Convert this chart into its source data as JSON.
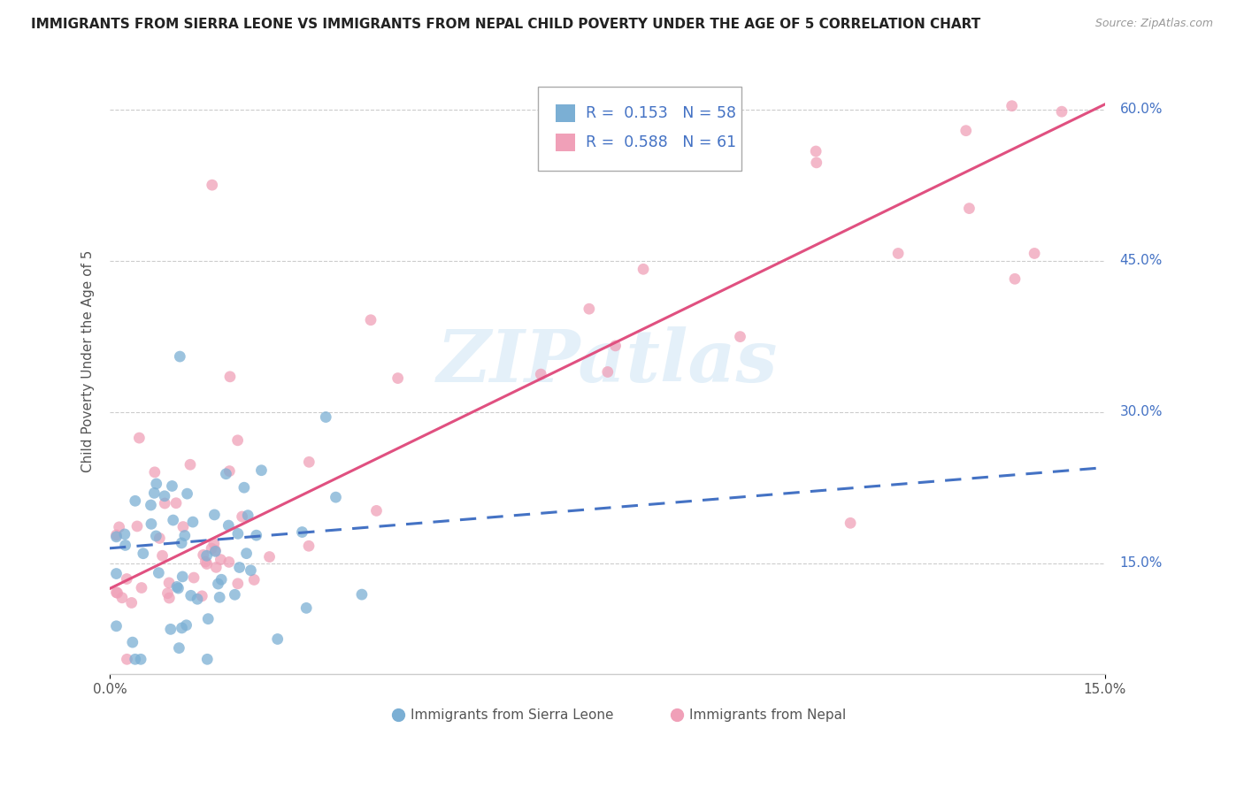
{
  "title": "IMMIGRANTS FROM SIERRA LEONE VS IMMIGRANTS FROM NEPAL CHILD POVERTY UNDER THE AGE OF 5 CORRELATION CHART",
  "source": "Source: ZipAtlas.com",
  "ylabel": "Child Poverty Under the Age of 5",
  "ytick_vals": [
    0.15,
    0.3,
    0.45,
    0.6
  ],
  "ytick_labels": [
    "15.0%",
    "30.0%",
    "45.0%",
    "60.0%"
  ],
  "xlim": [
    0.0,
    0.15
  ],
  "ylim": [
    0.04,
    0.66
  ],
  "xtick_labels": [
    "0.0%",
    "15.0%"
  ],
  "watermark": "ZIPatlas",
  "legend_label1": "Immigrants from Sierra Leone",
  "legend_label2": "Immigrants from Nepal",
  "color_blue": "#7bafd4",
  "color_pink": "#f0a0b8",
  "color_blue_dark": "#4472c4",
  "color_pink_dark": "#e05080",
  "color_text": "#555555",
  "color_grid": "#cccccc",
  "title_fontsize": 11,
  "axis_fontsize": 11,
  "tick_fontsize": 11,
  "R1": 0.153,
  "N1": 58,
  "R2": 0.588,
  "N2": 61,
  "sl_intercept": 0.13,
  "sl_slope": 1.2,
  "np_intercept": 0.12,
  "np_slope": 3.2
}
